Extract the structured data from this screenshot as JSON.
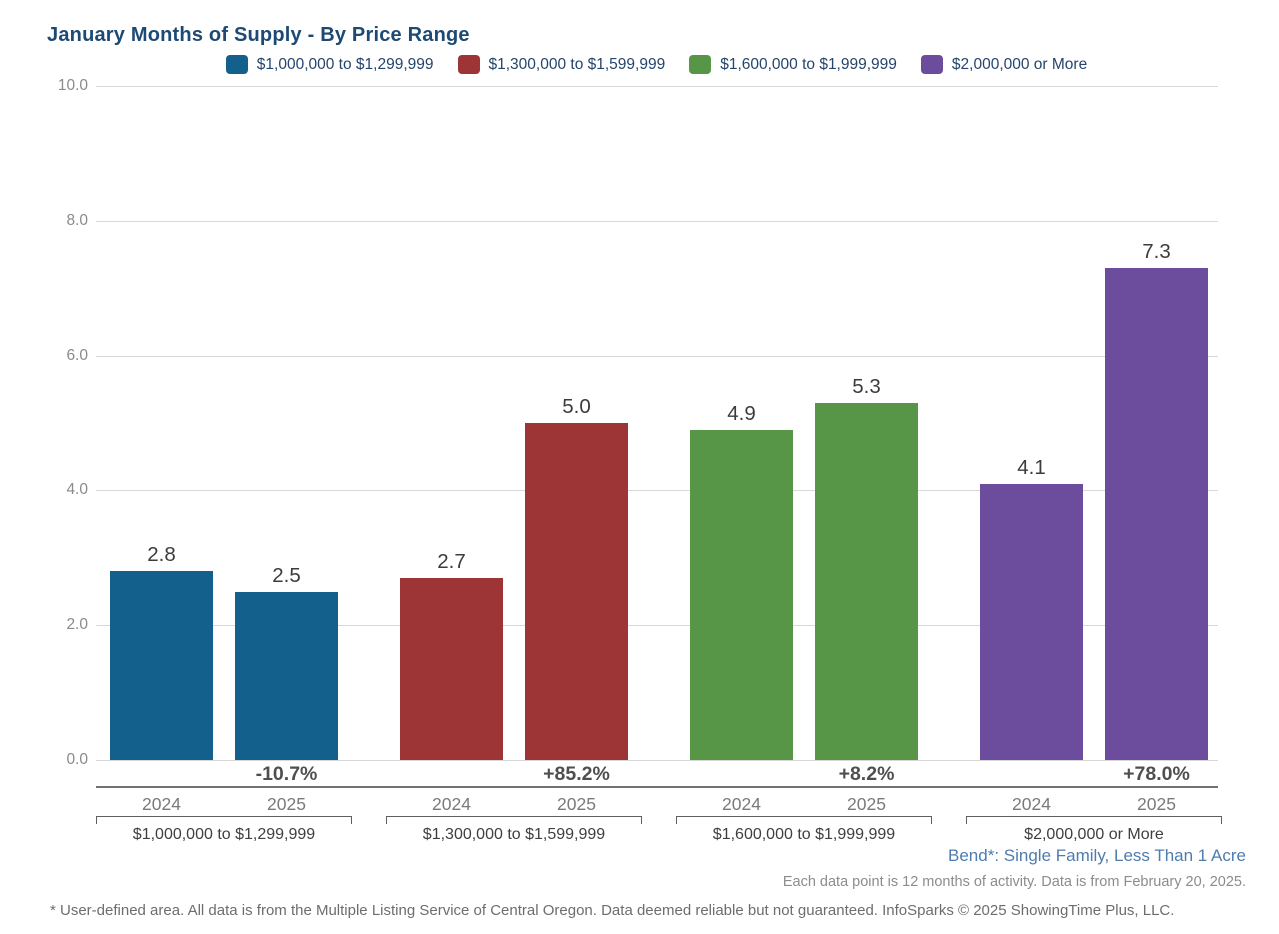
{
  "title": "January Months of Supply - By Price Range",
  "chart_data": {
    "type": "bar",
    "title": "January Months of Supply - By Price Range",
    "categories": [
      "$1,000,000 to $1,299,999",
      "$1,300,000 to $1,599,999",
      "$1,600,000 to $1,999,999",
      "$2,000,000 or More"
    ],
    "series": [
      {
        "name": "2024",
        "values": [
          2.8,
          2.7,
          4.9,
          4.1
        ]
      },
      {
        "name": "2025",
        "values": [
          2.5,
          5.0,
          5.3,
          7.3
        ]
      }
    ],
    "pct_change": [
      "-10.7%",
      "+85.2%",
      "+8.2%",
      "+78.0%"
    ],
    "group_colors": [
      "#14608d",
      "#9d3435",
      "#579647",
      "#6c4d9d"
    ],
    "legend": [
      {
        "label": "$1,000,000 to $1,299,999",
        "color": "#14608d"
      },
      {
        "label": "$1,300,000 to $1,599,999",
        "color": "#9d3435"
      },
      {
        "label": "$1,600,000 to $1,999,999",
        "color": "#579647"
      },
      {
        "label": "$2,000,000 or More",
        "color": "#6c4d9d"
      }
    ],
    "legend_position": "top",
    "y_ticks": [
      "0.0",
      "2.0",
      "4.0",
      "6.0",
      "8.0",
      "10.0"
    ],
    "ylim": [
      0,
      10
    ],
    "grid": true,
    "xlabel": "",
    "ylabel": ""
  },
  "footer": {
    "area_line": "Bend*: Single Family, Less Than 1 Acre",
    "data_note": "Each data point is 12 months of activity. Data is from February 20, 2025.",
    "disclaimer": "* User-defined area. All data is from the Multiple Listing Service of Central Oregon. Data deemed reliable but not guaranteed. InfoSparks © 2025 ShowingTime Plus, LLC."
  },
  "colors": {
    "title_text": "#1d4a74",
    "legend_text": "#26456b",
    "area_subtitle_text": "#4e7cae",
    "gridline": "#d8d8d8",
    "tick_text": "#8a8a8a"
  }
}
